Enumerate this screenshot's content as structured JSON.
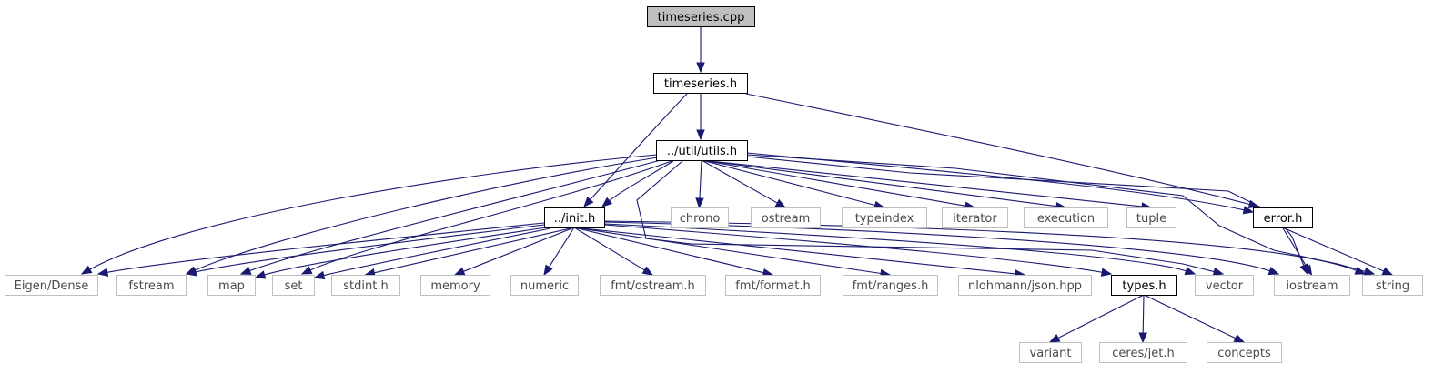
{
  "graph": {
    "nodes": {
      "timeseries_cpp": "timeseries.cpp",
      "timeseries_h": "timeseries.h",
      "utils_h": "../util/utils.h",
      "init_h": "../init.h",
      "error_h": "error.h",
      "types_h": "types.h",
      "chrono": "chrono",
      "ostream": "ostream",
      "typeindex": "typeindex",
      "iterator": "iterator",
      "execution": "execution",
      "tuple": "tuple",
      "eigen_dense": "Eigen/Dense",
      "fstream": "fstream",
      "map": "map",
      "set": "set",
      "stdint_h": "stdint.h",
      "memory": "memory",
      "numeric": "numeric",
      "fmt_ostream_h": "fmt/ostream.h",
      "fmt_format_h": "fmt/format.h",
      "fmt_ranges_h": "fmt/ranges.h",
      "nlohmann_json_hpp": "nlohmann/json.hpp",
      "vector": "vector",
      "iostream": "iostream",
      "string": "string",
      "variant": "variant",
      "ceres_jet_h": "ceres/jet.h",
      "concepts": "concepts"
    }
  }
}
